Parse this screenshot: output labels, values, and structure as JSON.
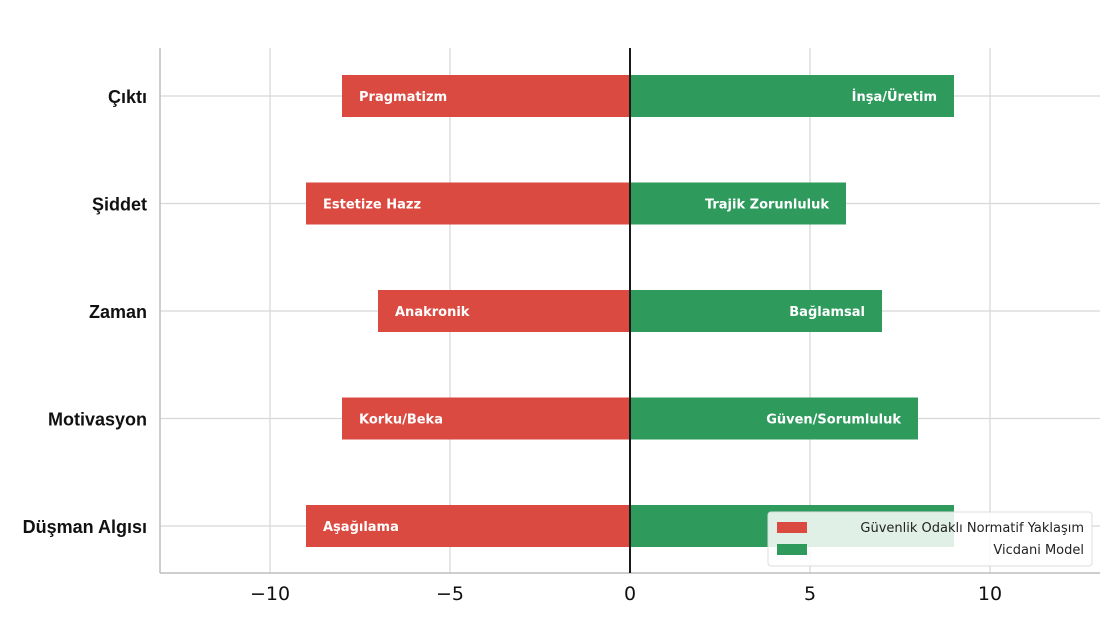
{
  "chart_data": {
    "type": "bar",
    "orientation": "horizontal",
    "categories": [
      "Çıktı",
      "Şiddet",
      "Zaman",
      "Motivasyon",
      "Düşman Algısı"
    ],
    "series": [
      {
        "name": "Güvenlik Odaklı Normatif Yaklaşım",
        "color": "#db4a40",
        "values": [
          -8,
          -9,
          -7,
          -8,
          -9
        ],
        "labels": [
          "Pragmatizm",
          "Estetize Hazz",
          "Anakronik",
          "Korku/Beka",
          "Aşağılama"
        ]
      },
      {
        "name": "Vicdani Model",
        "color": "#2e9b5d",
        "values": [
          9,
          6,
          7,
          8,
          9
        ],
        "labels": [
          "İnşa/Üretim",
          "Trajik Zorunluluk",
          "Bağlamsal",
          "Güven/Sorumluluk",
          ""
        ]
      }
    ],
    "xlim": [
      -13,
      13
    ],
    "xticks": [
      -10,
      -5,
      0,
      5,
      10
    ],
    "xtick_labels": [
      "−10",
      "−5",
      "0",
      "5",
      "10"
    ],
    "grid": true,
    "legend_position": "lower-right",
    "title": "",
    "xlabel": "",
    "ylabel": ""
  }
}
